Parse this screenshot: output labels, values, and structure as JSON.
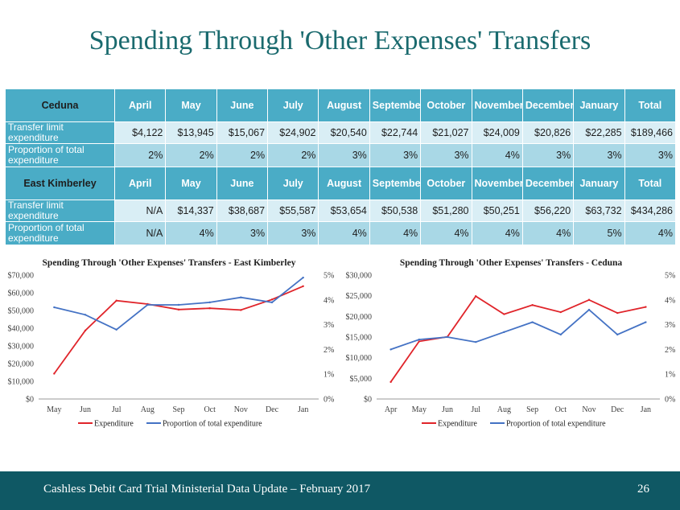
{
  "title": "Spending Through 'Other Expenses' Transfers",
  "table": {
    "months": [
      "April",
      "May",
      "June",
      "July",
      "August",
      "September",
      "October",
      "November",
      "December",
      "January"
    ],
    "total_label": "Total",
    "ceduna": {
      "name": "Ceduna",
      "row1_label": "Transfer limit expenditure",
      "row1_values": [
        "$4,122",
        "$13,945",
        "$15,067",
        "$24,902",
        "$20,540",
        "$22,744",
        "$21,027",
        "$24,009",
        "$20,826",
        "$22,285"
      ],
      "row1_total": "$189,466",
      "row2_label": "Proportion of total expenditure",
      "row2_values": [
        "2%",
        "2%",
        "2%",
        "2%",
        "3%",
        "3%",
        "3%",
        "4%",
        "3%",
        "3%"
      ],
      "row2_total": "3%"
    },
    "kimberley": {
      "name": "East Kimberley",
      "row1_label": "Transfer limit expenditure",
      "row1_values": [
        "N/A",
        "$14,337",
        "$38,687",
        "$55,587",
        "$53,654",
        "$50,538",
        "$51,280",
        "$50,251",
        "$56,220",
        "$63,732"
      ],
      "row1_total": "$434,286",
      "row2_label": "Proportion of total expenditure",
      "row2_values": [
        "N/A",
        "4%",
        "3%",
        "3%",
        "4%",
        "4%",
        "4%",
        "4%",
        "4%",
        "5%"
      ],
      "row2_total": "4%"
    }
  },
  "chart_data": [
    {
      "type": "line",
      "title": "Spending Through 'Other Expenses' Transfers - East Kimberley",
      "categories": [
        "May",
        "Jun",
        "Jul",
        "Aug",
        "Sep",
        "Oct",
        "Nov",
        "Dec",
        "Jan"
      ],
      "series": [
        {
          "name": "Expenditure",
          "axis": "left",
          "color": "#e0242a",
          "values": [
            14337,
            38687,
            55587,
            53654,
            50538,
            51280,
            50251,
            56220,
            63732
          ]
        },
        {
          "name": "Proportion of total expenditure",
          "axis": "right",
          "color": "#4472c4",
          "values": [
            3.7,
            3.4,
            2.8,
            3.8,
            3.8,
            3.9,
            4.1,
            3.9,
            4.9
          ]
        }
      ],
      "ylim": [
        0,
        70000
      ],
      "yticks": [
        "$0",
        "$10,000",
        "$20,000",
        "$30,000",
        "$40,000",
        "$50,000",
        "$60,000",
        "$70,000"
      ],
      "y2lim": [
        0,
        5
      ],
      "y2ticks": [
        "0%",
        "1%",
        "2%",
        "3%",
        "4%",
        "5%"
      ]
    },
    {
      "type": "line",
      "title": "Spending Through 'Other Expenses' Transfers - Ceduna",
      "categories": [
        "Apr",
        "May",
        "Jun",
        "Jul",
        "Aug",
        "Sep",
        "Oct",
        "Nov",
        "Dec",
        "Jan"
      ],
      "series": [
        {
          "name": "Expenditure",
          "axis": "left",
          "color": "#e0242a",
          "values": [
            4122,
            13945,
            15067,
            24902,
            20540,
            22744,
            21027,
            24009,
            20826,
            22285
          ]
        },
        {
          "name": "Proportion of total expenditure",
          "axis": "right",
          "color": "#4472c4",
          "values": [
            2.0,
            2.4,
            2.5,
            2.3,
            2.7,
            3.1,
            2.6,
            3.6,
            2.6,
            3.1
          ]
        }
      ],
      "ylim": [
        0,
        30000
      ],
      "yticks": [
        "$0",
        "$5,000",
        "$10,000",
        "$15,000",
        "$20,000",
        "$25,000",
        "$30,000"
      ],
      "y2lim": [
        0,
        5
      ],
      "y2ticks": [
        "0%",
        "1%",
        "2%",
        "3%",
        "4%",
        "5%"
      ]
    }
  ],
  "footer": {
    "text": "Cashless Debit Card Trial Ministerial Data Update – February 2017",
    "page": "26"
  }
}
